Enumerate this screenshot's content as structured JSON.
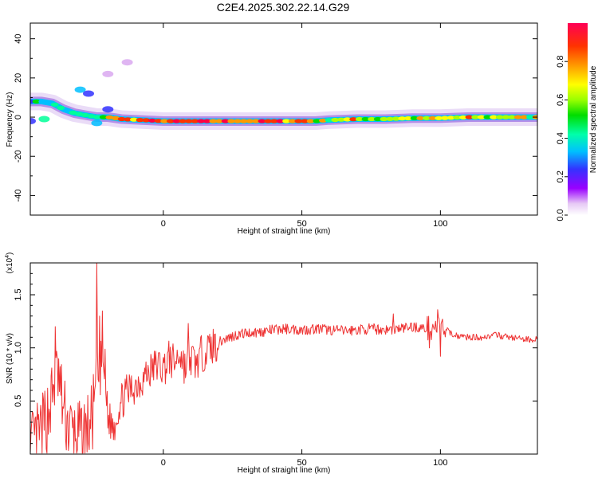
{
  "chart_data": [
    {
      "type": "heatmap",
      "title": "C2E4.2025.302.22.14.G29",
      "xlabel": "Height of straight line (km)",
      "ylabel": "Frequency (Hz)",
      "xlim": [
        -48,
        135
      ],
      "ylim": [
        -50,
        48
      ],
      "xticks": [
        0,
        50,
        100
      ],
      "yticks": [
        40,
        20,
        0,
        -20,
        -40
      ],
      "colorbar": {
        "label": "Normalized spectral amplitude",
        "range": [
          0,
          1
        ],
        "ticks": [
          "0.0",
          "0.2",
          "0.4",
          "0.6",
          "0.8"
        ],
        "colors": [
          "#ffffff",
          "#d9a8f0",
          "#9900ff",
          "#3333ff",
          "#00bfff",
          "#00ff99",
          "#00dd00",
          "#aaff00",
          "#ffff00",
          "#ff9900",
          "#ff3300",
          "#ff0044"
        ]
      },
      "ridge": {
        "x": [
          -48,
          -44,
          -40,
          -36,
          -32,
          -28,
          -24,
          -20,
          -15,
          0,
          20,
          40,
          55,
          60,
          70,
          80,
          90,
          100,
          110,
          120,
          135
        ],
        "y": [
          8,
          8,
          7,
          4,
          2,
          1,
          0,
          0,
          -1,
          -2,
          -2,
          -2,
          -2,
          -1.5,
          -1,
          -1,
          -0.5,
          -0.5,
          0,
          0,
          0
        ]
      },
      "blobs": [
        {
          "x": -48,
          "y": -2,
          "v": 0.3
        },
        {
          "x": -43,
          "y": -1,
          "v": 0.45
        },
        {
          "x": -30,
          "y": 14,
          "v": 0.4
        },
        {
          "x": -27,
          "y": 12,
          "v": 0.3
        },
        {
          "x": -24,
          "y": -3,
          "v": 0.4
        },
        {
          "x": -20,
          "y": 4,
          "v": 0.3
        },
        {
          "x": -13,
          "y": 28,
          "v": 0.1
        },
        {
          "x": -20,
          "y": 22,
          "v": 0.1
        }
      ]
    },
    {
      "type": "line",
      "xlabel": "Height of straight line (km)",
      "ylabel": "SNR (10 * v/v)",
      "y_multiplier": "(x10",
      "y_multiplier_exp": "4",
      "y_multiplier_close": ")",
      "xlim": [
        -48,
        135
      ],
      "ylim": [
        0,
        1.8
      ],
      "xticks": [
        0,
        50,
        100
      ],
      "yticks": [
        "0.5",
        "1.0",
        "1.5"
      ],
      "ytick_values": [
        0.5,
        1.0,
        1.5
      ],
      "color": "#ee3333",
      "x": [
        -48,
        -46,
        -44,
        -42,
        -40,
        -38,
        -36,
        -34,
        -32,
        -30,
        -28,
        -26,
        -24,
        -22,
        -20,
        -18,
        -16,
        -14,
        -12,
        -10,
        -8,
        -6,
        -4,
        -2,
        0,
        2,
        4,
        6,
        8,
        10,
        12,
        14,
        16,
        18,
        20,
        22,
        24,
        26,
        28,
        30,
        35,
        40,
        45,
        50,
        55,
        60,
        65,
        70,
        75,
        80,
        85,
        90,
        95,
        100,
        105,
        110,
        115,
        120,
        125,
        130,
        135
      ],
      "y": [
        0.05,
        0.12,
        0.2,
        0.35,
        0.55,
        0.75,
        0.4,
        0.25,
        0.18,
        0.15,
        0.2,
        0.3,
        0.6,
        1.0,
        0.35,
        0.25,
        0.45,
        0.55,
        0.6,
        0.65,
        0.7,
        0.75,
        0.8,
        0.85,
        0.8,
        0.9,
        0.85,
        0.95,
        0.8,
        0.9,
        0.85,
        0.95,
        0.98,
        1.02,
        1.05,
        1.08,
        1.1,
        1.12,
        1.13,
        1.14,
        1.15,
        1.17,
        1.18,
        1.17,
        1.18,
        1.17,
        1.16,
        1.17,
        1.18,
        1.17,
        1.18,
        1.2,
        1.18,
        1.2,
        1.12,
        1.1,
        1.1,
        1.12,
        1.1,
        1.08,
        1.08
      ],
      "spikes": [
        {
          "x": -39,
          "y": 1.2
        },
        {
          "x": -24,
          "y": 1.8
        },
        {
          "x": -23,
          "y": 1.3
        },
        {
          "x": 9,
          "y": 1.23
        },
        {
          "x": 83,
          "y": 1.32
        },
        {
          "x": 99,
          "y": 1.36
        },
        {
          "x": 100,
          "y": 0.92
        },
        {
          "x": 96,
          "y": 1.0
        }
      ]
    }
  ]
}
